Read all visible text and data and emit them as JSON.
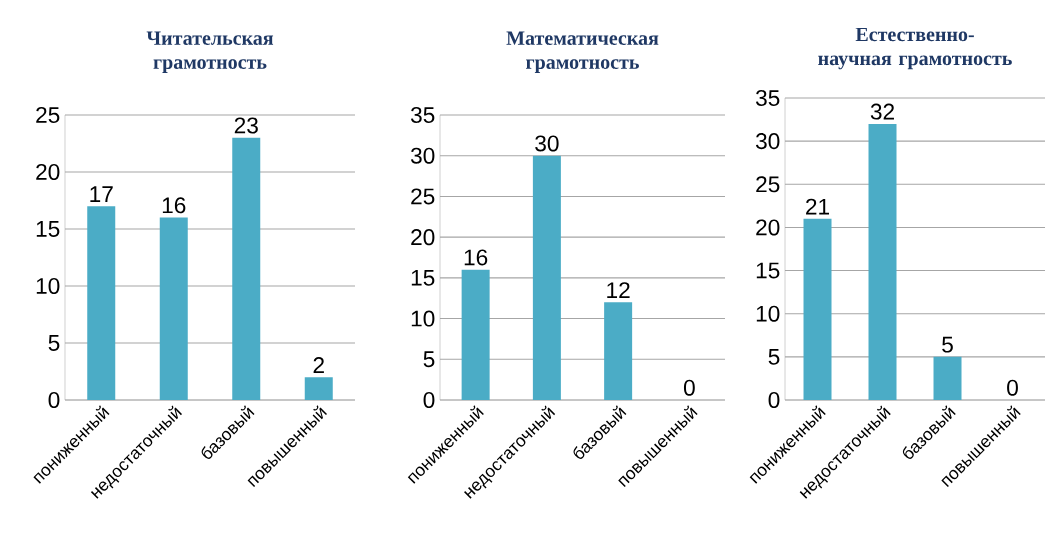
{
  "chart_data": [
    {
      "type": "bar",
      "title": "Читательская грамотность",
      "categories": [
        "пониженный",
        "недостаточный",
        "базовый",
        "повышенный"
      ],
      "values": [
        17,
        16,
        23,
        2
      ],
      "color": "#4bacc6",
      "ylim": [
        0,
        25
      ],
      "yticks": [
        0,
        5,
        10,
        15,
        20,
        25
      ],
      "grid": "y",
      "data_labels": true
    },
    {
      "type": "bar",
      "title": "Математическая грамотность",
      "categories": [
        "пониженный",
        "недостаточный",
        "базовый",
        "повышенный"
      ],
      "values": [
        16,
        30,
        12,
        0
      ],
      "color": "#4bacc6",
      "ylim": [
        0,
        35
      ],
      "yticks": [
        0,
        5,
        10,
        15,
        20,
        25,
        30,
        35
      ],
      "grid": "y",
      "data_labels": true
    },
    {
      "type": "bar",
      "title": "Естественно-научная грамотность",
      "categories": [
        "пониженный",
        "недостаточный",
        "базовый",
        "повышенный"
      ],
      "values": [
        21,
        32,
        5,
        0
      ],
      "color": "#4bacc6",
      "ylim": [
        0,
        35
      ],
      "yticks": [
        0,
        5,
        10,
        15,
        20,
        25,
        30,
        35
      ],
      "grid": "y",
      "data_labels": true
    }
  ]
}
